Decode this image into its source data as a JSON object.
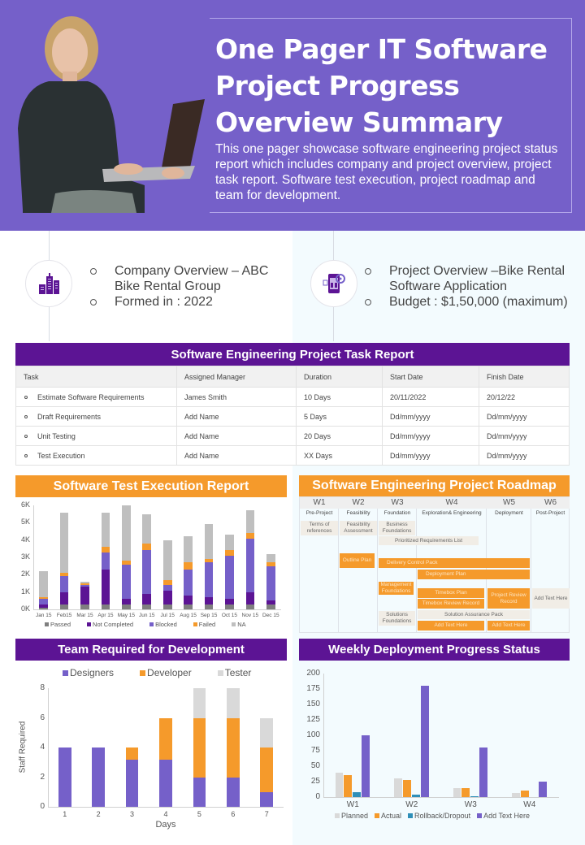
{
  "hero": {
    "title": "One Pager IT Software Project Progress Overview Summary",
    "title_lines": [
      "One Pager IT Software",
      "Project Progress",
      "Overview Summary"
    ],
    "description": "This one pager showcase software engineering project status report which includes company and project overview, project task report. Software test execution, project roadmap and team for development.",
    "photo": "woman-with-laptop"
  },
  "overview": {
    "company": {
      "icon": "buildings-icon",
      "items": [
        "Company Overview – ABC Bike Rental Group",
        "Formed in : 2022"
      ]
    },
    "project": {
      "icon": "mobile-app-gear-icon",
      "items": [
        "Project Overview –Bike Rental Software Application",
        "Budget : $1,50,000 (maximum)"
      ]
    }
  },
  "task_report": {
    "title": "Software Engineering Project Task Report",
    "columns": [
      "Task",
      "Assigned Manager",
      "Duration",
      "Start Date",
      "Finish Date"
    ],
    "rows": [
      [
        "Estimate Software Requirements",
        "James Smith",
        "10 Days",
        "20/11/2022",
        "20/12/22"
      ],
      [
        "Draft Requirements",
        "Add Name",
        "5 Days",
        "Dd/mm/yyyy",
        "Dd/mm/yyyy"
      ],
      [
        "Unit Testing",
        "Add Name",
        "20 Days",
        "Dd/mm/yyyy",
        "Dd/mm/yyyy"
      ],
      [
        "Test Execution",
        "Add Name",
        "XX  Days",
        "Dd/mm/yyyy",
        "Dd/mm/yyyy"
      ]
    ]
  },
  "test_execution": {
    "title": "Software Test Execution Report"
  },
  "roadmap": {
    "title": "Software Engineering Project Roadmap",
    "weeks": [
      "W1",
      "W2",
      "W3",
      "W4",
      "W5",
      "W6"
    ],
    "phases": [
      "Pre-Project",
      "Feasibility",
      "Foundation",
      "Exploration& Engineering",
      "Deployment",
      "Post-Project"
    ],
    "items": {
      "terms": "Terms of references",
      "feasibility": "Feasibility Assessment",
      "business": "Business Foundations",
      "prioritized": "Prioritized Requirements List",
      "outline": "Outline Plan",
      "delivery": "Delivery Control Pack",
      "deployment_plan": "Deployment Plan",
      "management": "Management Foundations",
      "timebox_plan": "Timebox Plan",
      "timebox_review": "Timebox Review Record",
      "project_review": "Project Review Record",
      "add_text_w6": "Add Text Here",
      "solutions": "Solutions Foundations",
      "solution_assurance": "Solution Assurance Pack",
      "add_text_w4": "Add Text Here",
      "add_text_w5": "Add Text Here"
    }
  },
  "team": {
    "title": "Team Required for Development"
  },
  "weekly": {
    "title": "Weekly Deployment Progress Status"
  },
  "colors": {
    "hero_bg": "#7560c9",
    "section_purple": "#5c1494",
    "section_orange": "#f59a2b",
    "passed": "#7f7f7f",
    "not_completed": "#5c1494",
    "blocked": "#7560c9",
    "failed": "#f59a2b",
    "na": "#bfbfbf",
    "tester": "#d9d9d9",
    "rollback": "#2e8fb8"
  },
  "chart_data": [
    {
      "type": "bar",
      "stacked": true,
      "title": "Software Test Execution Report",
      "categories": [
        "Jan 15",
        "Feb15",
        "Mar  15",
        "Apr 15",
        "May 15",
        "Jun 15",
        "Jul 15",
        "Aug 15",
        "Sep 15",
        "Oct 15",
        "Nov 15",
        "Dec 15"
      ],
      "series": [
        {
          "name": "Passed",
          "values": [
            100,
            300,
            300,
            300,
            300,
            300,
            300,
            300,
            300,
            300,
            300,
            300
          ]
        },
        {
          "name": "Not Completed",
          "values": [
            200,
            700,
            1000,
            2000,
            300,
            600,
            800,
            500,
            400,
            300,
            700,
            200
          ]
        },
        {
          "name": "Blocked",
          "values": [
            300,
            900,
            100,
            1000,
            2000,
            2500,
            300,
            1500,
            2000,
            2500,
            3100,
            2000
          ]
        },
        {
          "name": "Failed",
          "values": [
            100,
            200,
            100,
            300,
            200,
            400,
            300,
            400,
            200,
            300,
            300,
            200
          ]
        },
        {
          "name": "NA",
          "values": [
            1500,
            3500,
            100,
            2000,
            3200,
            1700,
            2300,
            1500,
            2000,
            900,
            1300,
            500
          ]
        }
      ],
      "yticks": [
        "0K",
        "1K",
        "2K",
        "3K",
        "4K",
        "5K",
        "6K"
      ],
      "ylim": [
        0,
        6000
      ],
      "legend_position": "bottom"
    },
    {
      "type": "bar",
      "stacked": true,
      "title": "Team Required for Development",
      "xlabel": "Days",
      "ylabel": "Staff Required",
      "categories": [
        "1",
        "2",
        "3",
        "4",
        "5",
        "6",
        "7"
      ],
      "series": [
        {
          "name": "Designers",
          "values": [
            4,
            4,
            3.2,
            3.2,
            2,
            2,
            1
          ]
        },
        {
          "name": "Developer",
          "values": [
            0,
            0,
            0.8,
            2.8,
            4,
            4,
            3
          ]
        },
        {
          "name": "Tester",
          "values": [
            0,
            0,
            0,
            0,
            2,
            2,
            2
          ]
        }
      ],
      "yticks": [
        "0",
        "2",
        "4",
        "6",
        "8"
      ],
      "ylim": [
        0,
        8
      ],
      "legend_position": "top"
    },
    {
      "type": "bar",
      "stacked": false,
      "title": "Weekly Deployment Progress Status",
      "categories": [
        "W1",
        "W2",
        "W3",
        "W4"
      ],
      "series": [
        {
          "name": "Planned",
          "values": [
            40,
            30,
            15,
            7
          ]
        },
        {
          "name": "Actual",
          "values": [
            35,
            28,
            15,
            11
          ]
        },
        {
          "name": "Rollback/Dropout",
          "values": [
            8,
            4,
            1,
            0
          ]
        },
        {
          "name": "Add Text Here",
          "values": [
            100,
            180,
            80,
            25
          ]
        }
      ],
      "yticks": [
        "0",
        "25",
        "50",
        "75",
        "100",
        "125",
        "150",
        "175",
        "200"
      ],
      "ylim": [
        0,
        200
      ],
      "legend_position": "bottom"
    }
  ]
}
